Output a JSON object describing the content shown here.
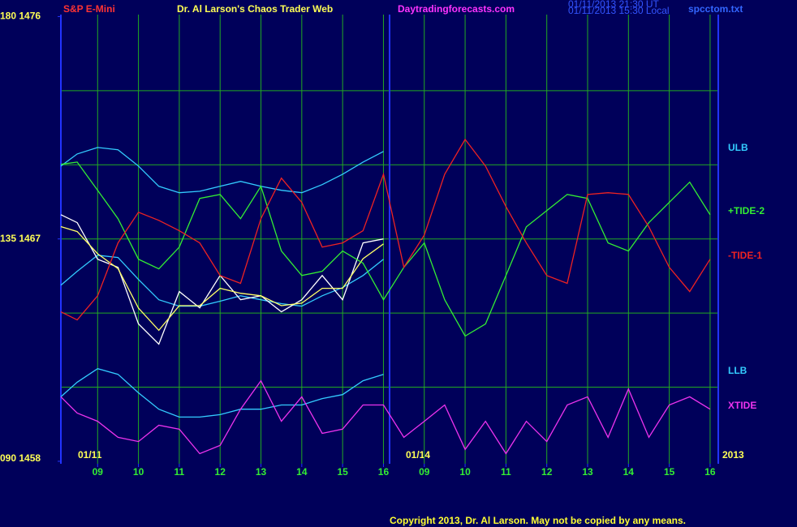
{
  "chart_data": {
    "type": "line",
    "subtitle": "S&P E-Mini",
    "title": "Dr. Al Larson's Chaos Trader Web",
    "site": "Daytradingforecasts.com",
    "timestamps": [
      "01/11/2013 21:30 UT",
      "01/11/2013 15:30 Local"
    ],
    "file": "spcctom.txt",
    "copyright": "Copyright 2013, Dr. Al Larson. May not be copied by any means.",
    "date_labels": [
      "01/11",
      "01/14",
      "2013"
    ],
    "x": [
      0.1,
      0.5,
      1,
      1.5,
      2,
      2.5,
      3,
      3.5,
      4,
      4.5,
      5,
      5.5,
      6,
      6.5,
      7,
      7.5,
      8,
      8.5,
      9,
      9.5,
      10,
      10.5,
      11,
      11.5,
      12,
      12.5,
      13,
      13.5,
      14,
      14.5,
      15,
      15.5,
      16
    ],
    "xlim": [
      0.1,
      16.2
    ],
    "xticks": [
      {
        "value": 1,
        "label": "09"
      },
      {
        "value": 2,
        "label": "10"
      },
      {
        "value": 3,
        "label": "11"
      },
      {
        "value": 4,
        "label": "12"
      },
      {
        "value": 5,
        "label": "13"
      },
      {
        "value": 6,
        "label": "14"
      },
      {
        "value": 7,
        "label": "15"
      },
      {
        "value": 8,
        "label": "16"
      },
      {
        "value": 9,
        "label": "09"
      },
      {
        "value": 10,
        "label": "10"
      },
      {
        "value": 11,
        "label": "11"
      },
      {
        "value": 12,
        "label": "12"
      },
      {
        "value": 13,
        "label": "13"
      },
      {
        "value": 14,
        "label": "14"
      },
      {
        "value": 15,
        "label": "15"
      },
      {
        "value": 16,
        "label": "16"
      }
    ],
    "vlines": [
      8.15
    ],
    "ylim": [
      1457.9,
      1476.08
    ],
    "yticks": [
      {
        "value": 1476,
        "label": "180 1476"
      },
      {
        "value": 1467,
        "label": "135 1467"
      },
      {
        "value": 1458,
        "label": "090 1458"
      }
    ],
    "ygrid": [
      1461,
      1464,
      1467,
      1470,
      1473
    ],
    "grid": true,
    "series": [
      {
        "name": "ULB",
        "color": "#33ccff",
        "values": [
          1469.95,
          1470.44,
          1470.7,
          1470.61,
          1469.95,
          1469.13,
          1468.87,
          1468.93,
          1469.13,
          1469.33,
          1469.13,
          1468.97,
          1468.87,
          1469.2,
          1469.62,
          1470.11,
          1470.54,
          null,
          null,
          null,
          null,
          null,
          null,
          null,
          null,
          null,
          null,
          null,
          null,
          null,
          null,
          null,
          null
        ]
      },
      {
        "color": "#33ccff",
        "values": [
          1465.13,
          1465.69,
          1466.34,
          1466.25,
          1465.36,
          1464.54,
          1464.28,
          1464.28,
          1464.48,
          1464.7,
          1464.54,
          1464.38,
          1464.28,
          1464.7,
          1465.03,
          1465.52,
          1466.18,
          null,
          null,
          null,
          null,
          null,
          null,
          null,
          null,
          null,
          null,
          null,
          null,
          null,
          null,
          null,
          null
        ]
      },
      {
        "name": "LLB",
        "color": "#33ccff",
        "values": [
          1460.61,
          1461.2,
          1461.75,
          1461.52,
          1460.77,
          1460.11,
          1459.79,
          1459.79,
          1459.89,
          1460.11,
          1460.11,
          1460.28,
          1460.28,
          1460.54,
          1460.7,
          1461.26,
          1461.52,
          null,
          null,
          null,
          null,
          null,
          null,
          null,
          null,
          null,
          null,
          null,
          null,
          null,
          null,
          null,
          null
        ]
      },
      {
        "color": "#ffffff",
        "values": [
          1467.98,
          1467.66,
          1466.18,
          1465.85,
          1463.56,
          1462.74,
          1464.87,
          1464.21,
          1465.52,
          1464.54,
          1464.7,
          1464.05,
          1464.54,
          1465.52,
          1464.54,
          1466.84,
          1467.0,
          null,
          null,
          null,
          null,
          null,
          null,
          null,
          null,
          null,
          null,
          null,
          null,
          null,
          null,
          null,
          null
        ]
      },
      {
        "color": "#ffff66",
        "values": [
          1467.5,
          1467.3,
          1466.4,
          1465.8,
          1464.2,
          1463.3,
          1464.3,
          1464.3,
          1465.0,
          1464.8,
          1464.7,
          1464.3,
          1464.4,
          1465.0,
          1465.0,
          1466.2,
          1466.8,
          null,
          null,
          null,
          null,
          null,
          null,
          null,
          null,
          null,
          null,
          null,
          null,
          null,
          null,
          null,
          null
        ]
      },
      {
        "name": "+TIDE-2",
        "color": "#33ee33",
        "values": [
          1470.02,
          1470.11,
          1468.97,
          1467.82,
          1466.18,
          1465.79,
          1466.67,
          1468.64,
          1468.8,
          1467.82,
          1469.13,
          1466.51,
          1465.52,
          1465.69,
          1466.51,
          1466.02,
          1464.54,
          1465.85,
          1466.84,
          1464.54,
          1463.07,
          1463.56,
          1465.52,
          1467.49,
          1468.15,
          1468.8,
          1468.64,
          1466.84,
          1466.51,
          1467.66,
          1468.48,
          1469.3,
          1467.98
        ]
      },
      {
        "name": "-TIDE-1",
        "color": "#ee2222",
        "values": [
          1464.05,
          1463.72,
          1464.7,
          1466.84,
          1468.08,
          1467.75,
          1467.33,
          1466.84,
          1465.52,
          1465.2,
          1467.82,
          1469.46,
          1468.48,
          1466.67,
          1466.84,
          1467.33,
          1469.62,
          1465.85,
          1467.16,
          1469.62,
          1471.03,
          1469.95,
          1468.31,
          1466.84,
          1465.52,
          1465.2,
          1468.8,
          1468.87,
          1468.8,
          1467.49,
          1465.85,
          1464.87,
          1466.18
        ]
      },
      {
        "name": "XTIDE",
        "color": "#ee33ee",
        "values": [
          1460.61,
          1459.95,
          1459.62,
          1458.97,
          1458.8,
          1459.46,
          1459.3,
          1458.31,
          1458.64,
          1460.11,
          1461.26,
          1459.62,
          1460.61,
          1459.13,
          1459.3,
          1460.28,
          1460.28,
          1458.97,
          1459.62,
          1460.28,
          1458.48,
          1459.62,
          1458.31,
          1459.62,
          1458.8,
          1460.28,
          1460.61,
          1458.97,
          1460.93,
          1458.97,
          1460.28,
          1460.61,
          1460.11
        ]
      }
    ]
  }
}
